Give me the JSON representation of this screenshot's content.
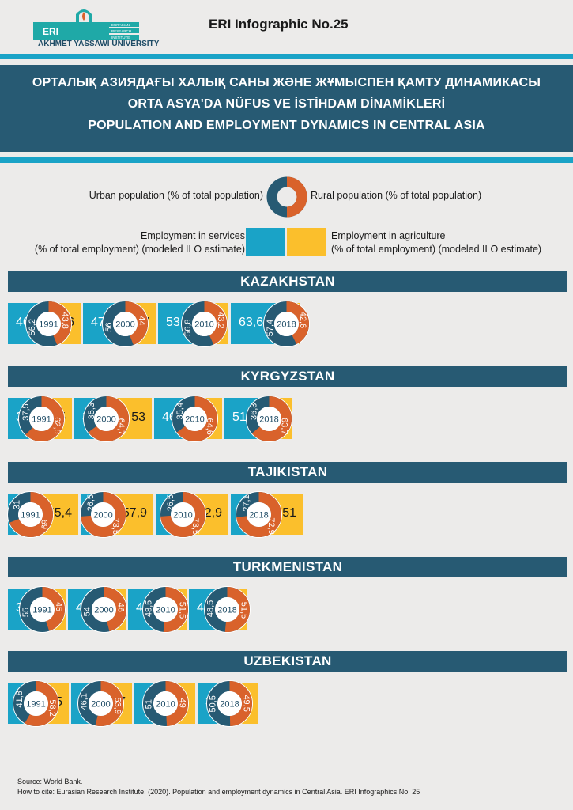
{
  "header": {
    "logo_text": "ERI",
    "logo_sub": [
      "EURASIAN",
      "RESEARCH",
      "INSTITUTE"
    ],
    "university": "AKHMET YASSAWI UNIVERSITY",
    "infographic_no": "ERI Infographic No.25"
  },
  "titles": [
    "ОРТАЛЫҚ АЗИЯДАҒЫ ХАЛЫҚ САНЫ ЖӘНЕ ЖҰМЫСПЕН ҚАМТУ ДИНАМИКАСЫ",
    "ORTA ASYA'DA NÜFUS VE İSTİHDAM DİNAMİKLERİ",
    "POPULATION AND EMPLOYMENT DYNAMICS IN CENTRAL ASIA"
  ],
  "legend": {
    "urban": "Urban population (% of total population)",
    "rural": "Rural population (% of total population)",
    "services_line1": "Employment in services",
    "services_line2": "(% of total employment) (modeled ILO estimate)",
    "agriculture_line1": "Employment in agriculture",
    "agriculture_line2": "(% of total employment) (modeled ILO estimate)"
  },
  "colors": {
    "urban": "#275a73",
    "rural": "#d9622b",
    "services": "#1aa3c7",
    "agriculture": "#fbbf2c",
    "band": "#275a73"
  },
  "chart_data": {
    "type": "bar",
    "years": [
      "1991",
      "2000",
      "2010",
      "2018"
    ],
    "series_keys": [
      "services",
      "agriculture",
      "urban",
      "rural"
    ],
    "countries": [
      {
        "name": "KAZAKHSTAN",
        "entries": [
          {
            "year": "1991",
            "services": "46,1",
            "agriculture": "37,6",
            "urban": "56,2",
            "rural": "43,8"
          },
          {
            "year": "2000",
            "services": "47,9",
            "agriculture": "35,7",
            "urban": "56",
            "rural": "44"
          },
          {
            "year": "2010",
            "services": "53",
            "agriculture": "28,2",
            "urban": "56,8",
            "rural": "43,2"
          },
          {
            "year": "2018",
            "services": "63,6",
            "agriculture": "15",
            "urban": "57,4",
            "rural": "42,6"
          }
        ]
      },
      {
        "name": "KYRGYZSTAN",
        "entries": [
          {
            "year": "1991",
            "services": "37,9",
            "agriculture": "35,5",
            "urban": "37,5",
            "rural": "62,5"
          },
          {
            "year": "2000",
            "services": "36,4",
            "agriculture": "53",
            "urban": "35,3",
            "rural": "64,7"
          },
          {
            "year": "2010",
            "services": "46,7",
            "agriculture": "32,1",
            "urban": "35,4",
            "rural": "64,6"
          },
          {
            "year": "2018",
            "services": "51,3",
            "agriculture": "26,5",
            "urban": "36,3",
            "rural": "63,7"
          }
        ]
      },
      {
        "name": "TAJIKISTAN",
        "entries": [
          {
            "year": "1991",
            "services": "25",
            "agriculture": "55,4",
            "urban": "31",
            "rural": "69"
          },
          {
            "year": "2000",
            "services": "25",
            "agriculture": "57,9",
            "urban": "26,5",
            "rural": "73,5"
          },
          {
            "year": "2010",
            "services": "31,2",
            "agriculture": "52,9",
            "urban": "26,5",
            "rural": "73,5"
          },
          {
            "year": "2018",
            "services": "32,2",
            "agriculture": "51",
            "urban": "27,1",
            "rural": "72,9"
          }
        ]
      },
      {
        "name": "TURKMENISTAN",
        "entries": [
          {
            "year": "1991",
            "services": "39,1",
            "agriculture": "27,3",
            "urban": "55",
            "rural": "45"
          },
          {
            "year": "2000",
            "services": "40,7",
            "agriculture": "25,8",
            "urban": "54",
            "rural": "46"
          },
          {
            "year": "2010",
            "services": "42,3",
            "agriculture": "24,1",
            "urban": "48,5",
            "rural": "51,5"
          },
          {
            "year": "2018",
            "services": "43,5",
            "agriculture": "22,7",
            "urban": "48,5",
            "rural": "51,5"
          }
        ]
      },
      {
        "name": "UZBEKISTAN",
        "entries": [
          {
            "year": "1991",
            "services": "32,1",
            "agriculture": "38,5",
            "urban": "41,8",
            "rural": "58,2"
          },
          {
            "year": "2000",
            "services": "33,7",
            "agriculture": "36,7",
            "urban": "46,1",
            "rural": "53,9"
          },
          {
            "year": "2010",
            "services": "35,3",
            "agriculture": "34,9",
            "urban": "51",
            "rural": "49"
          },
          {
            "year": "2018",
            "services": "36,3",
            "agriculture": "33,3",
            "urban": "50,5",
            "rural": "49,5"
          }
        ]
      }
    ]
  },
  "footer": {
    "source": "Source: World Bank.",
    "cite": "How to cite: Eurasian Research Institute, (2020). Population and employment dynamics in Central Asia. ERI Infographics No. 25"
  }
}
